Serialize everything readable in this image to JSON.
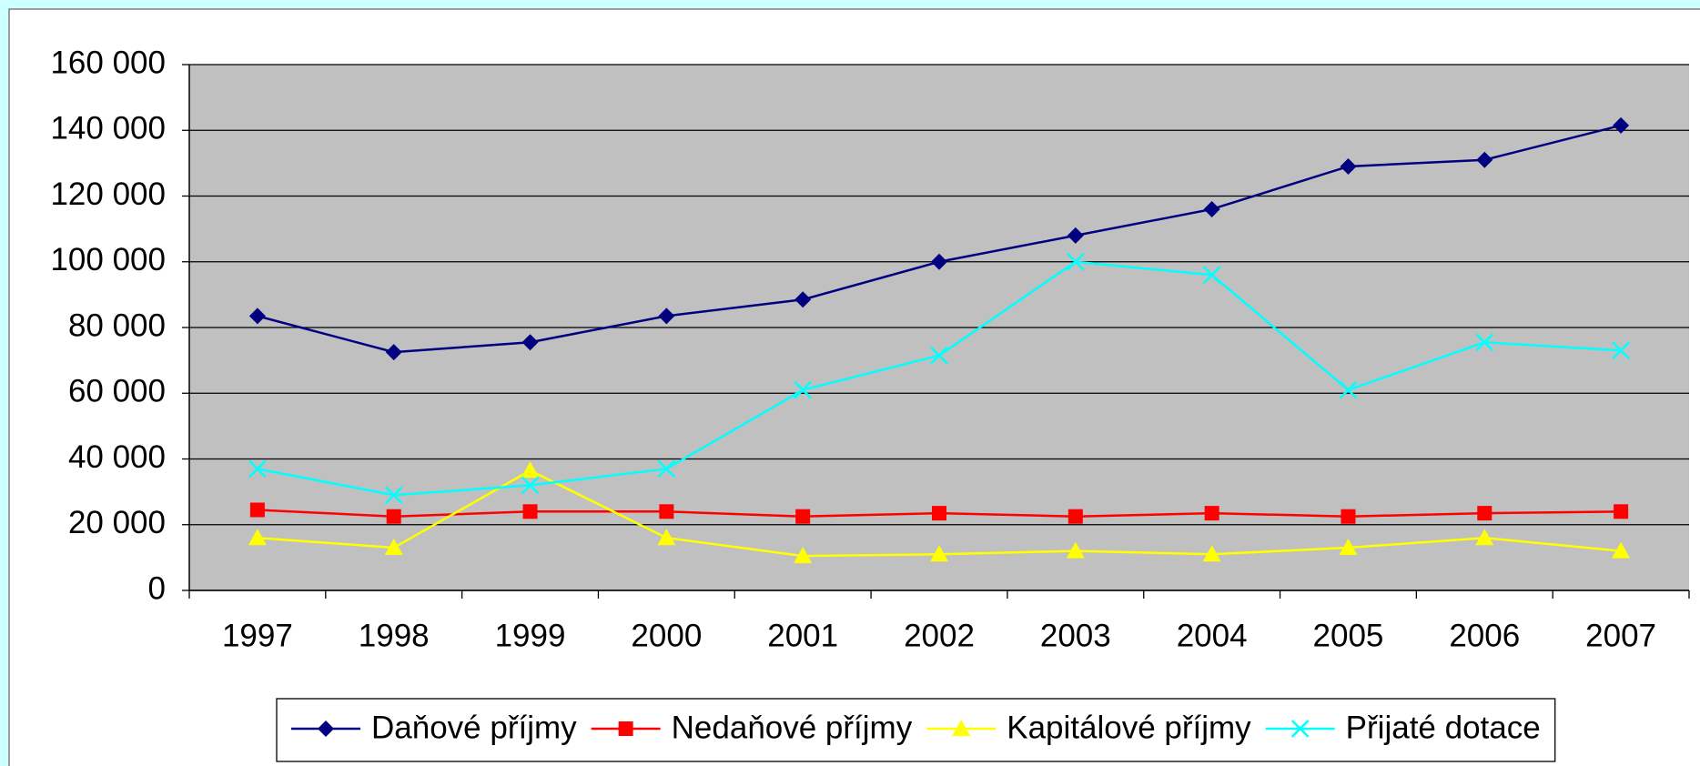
{
  "chart_data": {
    "type": "line",
    "categories": [
      "1997",
      "1998",
      "1999",
      "2000",
      "2001",
      "2002",
      "2003",
      "2004",
      "2005",
      "2006",
      "2007"
    ],
    "series": [
      {
        "name": "Daňové příjmy",
        "color": "#000080",
        "marker": "diamond",
        "values": [
          83500,
          72500,
          75500,
          83500,
          88500,
          100000,
          108000,
          116000,
          129000,
          131000,
          141500
        ]
      },
      {
        "name": "Nedaňové příjmy",
        "color": "#ff0000",
        "marker": "square",
        "values": [
          24500,
          22500,
          24000,
          24000,
          22500,
          23500,
          22500,
          23500,
          22500,
          23500,
          24000
        ]
      },
      {
        "name": "Kapitálové příjmy",
        "color": "#ffff00",
        "marker": "triangle",
        "values": [
          16000,
          13000,
          36500,
          16000,
          10500,
          11000,
          12000,
          11000,
          13000,
          16000,
          12000
        ]
      },
      {
        "name": "Přijaté dotace",
        "color": "#00ffff",
        "marker": "x",
        "values": [
          37000,
          29000,
          32000,
          37000,
          61000,
          71500,
          100000,
          96000,
          61000,
          75500,
          73000
        ]
      }
    ],
    "ylim": [
      0,
      160000
    ],
    "yticks": [
      0,
      {
        "value": 20000,
        "label": "20 000"
      },
      {
        "value": 40000,
        "label": "40 000"
      },
      {
        "value": 60000,
        "label": "60 000"
      },
      {
        "value": 80000,
        "label": "80 000"
      },
      {
        "value": 100000,
        "label": "100 000"
      },
      {
        "value": 120000,
        "label": "120 000"
      },
      {
        "value": 140000,
        "label": "140 000"
      },
      {
        "value": 160000,
        "label": "160 000"
      }
    ],
    "grid": true,
    "legend": "bottom"
  }
}
